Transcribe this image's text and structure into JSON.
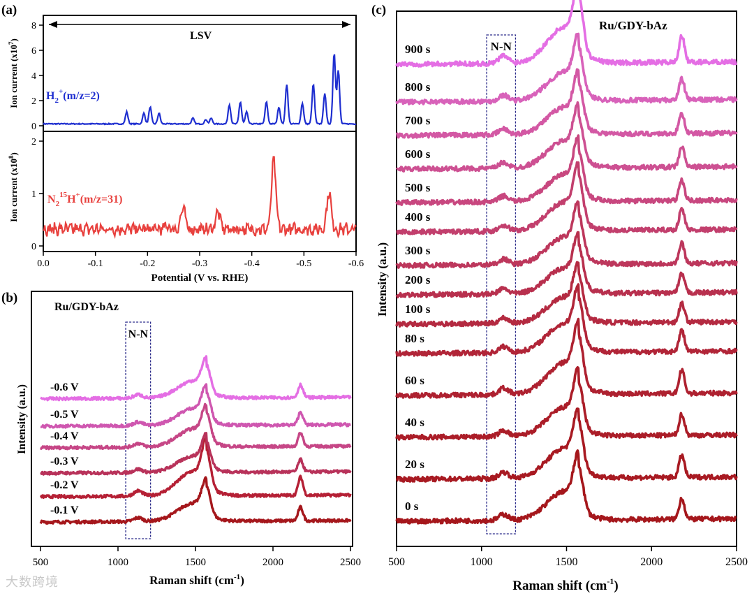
{
  "watermark": "大数跨境",
  "chart_data": [
    {
      "panel": "(a)",
      "type": "line",
      "xlabel": "Potential (V vs. RHE)",
      "xlim": [
        0.0,
        -0.6
      ],
      "xticks": [
        "0.0",
        "-0.1",
        "-0.2",
        "-0.3",
        "-0.4",
        "-0.5",
        "-0.6"
      ],
      "xtick_values": [
        0.0,
        -0.1,
        -0.2,
        -0.3,
        -0.4,
        -0.5,
        -0.6
      ],
      "annotation": "LSV",
      "subplots": [
        {
          "ylabel": "Ion current (x10",
          "ylabel_exp": "7",
          "ylim": [
            0,
            8
          ],
          "yticks": [
            "0",
            "2",
            "4",
            "6",
            "8"
          ],
          "ytick_values": [
            0,
            2,
            4,
            6,
            8
          ],
          "legend_main": "H",
          "legend_sub": "2",
          "legend_sup": "+",
          "legend_tail": "(m/z=2)",
          "color": "#1f2fd0",
          "baseline": 0.15,
          "peaks": [
            {
              "x": -0.16,
              "y": 1.1
            },
            {
              "x": -0.193,
              "y": 1.0
            },
            {
              "x": -0.205,
              "y": 1.5
            },
            {
              "x": -0.222,
              "y": 1.0
            },
            {
              "x": -0.287,
              "y": 0.6
            },
            {
              "x": -0.312,
              "y": 0.5
            },
            {
              "x": -0.322,
              "y": 0.6
            },
            {
              "x": -0.357,
              "y": 1.7
            },
            {
              "x": -0.378,
              "y": 1.9
            },
            {
              "x": -0.39,
              "y": 1.1
            },
            {
              "x": -0.428,
              "y": 1.9
            },
            {
              "x": -0.452,
              "y": 1.5
            },
            {
              "x": -0.467,
              "y": 3.3
            },
            {
              "x": -0.497,
              "y": 1.8
            },
            {
              "x": -0.518,
              "y": 3.3
            },
            {
              "x": -0.54,
              "y": 2.6
            },
            {
              "x": -0.558,
              "y": 5.8
            },
            {
              "x": -0.566,
              "y": 4.4
            }
          ]
        },
        {
          "ylabel": "Ion current (x10",
          "ylabel_exp": "8",
          "ylim": [
            0,
            2
          ],
          "yticks": [
            "0",
            "1",
            "2"
          ],
          "ytick_values": [
            0,
            1,
            2
          ],
          "legend_main": "N",
          "legend_sub": "2",
          "legend_sup": "15",
          "legend_mid": "H",
          "legend_sup2": "+",
          "legend_tail": "(m/z=31)",
          "color": "#e8413e",
          "baseline": 0.32,
          "peaks": [
            {
              "x": -0.238,
              "y": 0.38
            },
            {
              "x": -0.268,
              "y": 0.72
            },
            {
              "x": -0.335,
              "y": 0.65
            },
            {
              "x": -0.442,
              "y": 1.62
            },
            {
              "x": -0.548,
              "y": 1.02
            }
          ]
        }
      ]
    },
    {
      "panel": "(b)",
      "type": "line",
      "title": "Ru/GDY-bAz",
      "xlabel": "Raman shift (cm",
      "xlabel_sup": "-1",
      "xlabel_tail": ")",
      "ylabel": "Intensity (a.u.)",
      "xlim": [
        500,
        2500
      ],
      "xticks": [
        "500",
        "1000",
        "1500",
        "2000",
        "2500"
      ],
      "xtick_values": [
        500,
        1000,
        1500,
        2000,
        2500
      ],
      "highlight_box": {
        "label": "N-N",
        "x_range": [
          1050,
          1210
        ]
      },
      "series": [
        {
          "name": "-0.1 V",
          "color": "#a5171c",
          "offset": 0.6,
          "scale": 1.0
        },
        {
          "name": "-0.2 V",
          "color": "#b52035",
          "offset": 1.9,
          "scale": 1.35
        },
        {
          "name": "-0.3 V",
          "color": "#b8325a",
          "offset": 3.1,
          "scale": 0.9
        },
        {
          "name": "-0.4 V",
          "color": "#c64686",
          "offset": 4.4,
          "scale": 1.0
        },
        {
          "name": "-0.5 V",
          "color": "#cf57b0",
          "offset": 5.5,
          "scale": 0.95
        },
        {
          "name": "-0.6 V",
          "color": "#e46ee4",
          "offset": 6.9,
          "scale": 0.95
        }
      ]
    },
    {
      "panel": "(c)",
      "type": "line",
      "title": "Ru/GDY-bAz",
      "xlabel": "Raman shift (cm",
      "xlabel_sup": "-1",
      "xlabel_tail": ")",
      "ylabel": "Intensity (a.u.)",
      "xlim": [
        500,
        2500
      ],
      "xticks": [
        "500",
        "1000",
        "1500",
        "2000",
        "2500"
      ],
      "xtick_values": [
        500,
        1000,
        1500,
        2000,
        2500
      ],
      "highlight_box": {
        "label": "N-N",
        "x_range": [
          1030,
          1200
        ]
      },
      "series": [
        {
          "name": "0 s",
          "color": "#a5171c",
          "offset": 0.3,
          "scale": 1.0
        },
        {
          "name": "20 s",
          "color": "#a81a22",
          "offset": 1.3,
          "scale": 1.05
        },
        {
          "name": "40 s",
          "color": "#ab1d28",
          "offset": 2.3,
          "scale": 1.0
        },
        {
          "name": "60 s",
          "color": "#ae2130",
          "offset": 3.3,
          "scale": 1.1
        },
        {
          "name": "80 s",
          "color": "#b12538",
          "offset": 4.3,
          "scale": 1.0
        },
        {
          "name": "100 s",
          "color": "#b42a41",
          "offset": 5.0,
          "scale": 0.9
        },
        {
          "name": "200 s",
          "color": "#b8304e",
          "offset": 5.7,
          "scale": 0.9
        },
        {
          "name": "300 s",
          "color": "#bd375c",
          "offset": 6.4,
          "scale": 0.95
        },
        {
          "name": "400 s",
          "color": "#c23f6d",
          "offset": 7.2,
          "scale": 1.0
        },
        {
          "name": "500 s",
          "color": "#c8477f",
          "offset": 7.9,
          "scale": 0.95
        },
        {
          "name": "600 s",
          "color": "#cd5092",
          "offset": 8.7,
          "scale": 0.95
        },
        {
          "name": "700 s",
          "color": "#d358a4",
          "offset": 9.5,
          "scale": 0.95
        },
        {
          "name": "800 s",
          "color": "#d862ba",
          "offset": 10.3,
          "scale": 1.0
        },
        {
          "name": "900 s",
          "color": "#e46ee4",
          "offset": 11.2,
          "scale": 1.25
        }
      ]
    }
  ]
}
